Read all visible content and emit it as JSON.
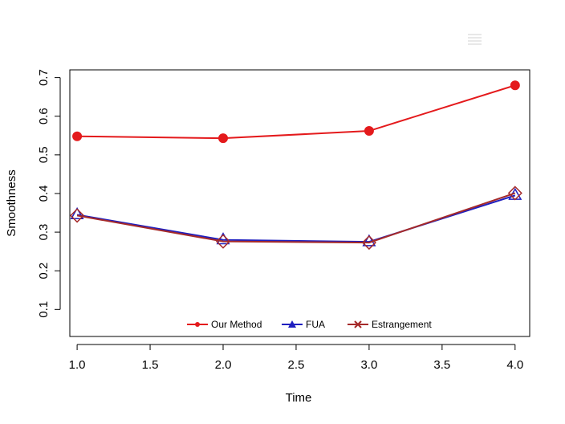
{
  "chart_data": {
    "type": "line",
    "title": "",
    "xlabel": "Time",
    "ylabel": "Smoothness",
    "x": [
      1.0,
      2.0,
      3.0,
      4.0
    ],
    "xlim": [
      0.95,
      4.1
    ],
    "ylim": [
      0.03,
      0.72
    ],
    "xticks": [
      "1.0",
      "1.5",
      "2.0",
      "2.5",
      "3.0",
      "3.5",
      "4.0"
    ],
    "yticks": [
      "0.1",
      "0.2",
      "0.3",
      "0.4",
      "0.5",
      "0.6",
      "0.7"
    ],
    "grid": false,
    "legend_position": "bottom-center",
    "series": [
      {
        "name": "Our Method",
        "values": [
          0.548,
          0.543,
          0.562,
          0.68
        ],
        "color": "#e41a1c",
        "marker": "circle"
      },
      {
        "name": "FUA",
        "values": [
          0.345,
          0.28,
          0.275,
          0.395
        ],
        "color": "#1f1fbf",
        "marker": "triangle"
      },
      {
        "name": "Estrangement",
        "values": [
          0.343,
          0.276,
          0.273,
          0.401
        ],
        "color": "#a52a2a",
        "marker": "diamond"
      }
    ]
  }
}
